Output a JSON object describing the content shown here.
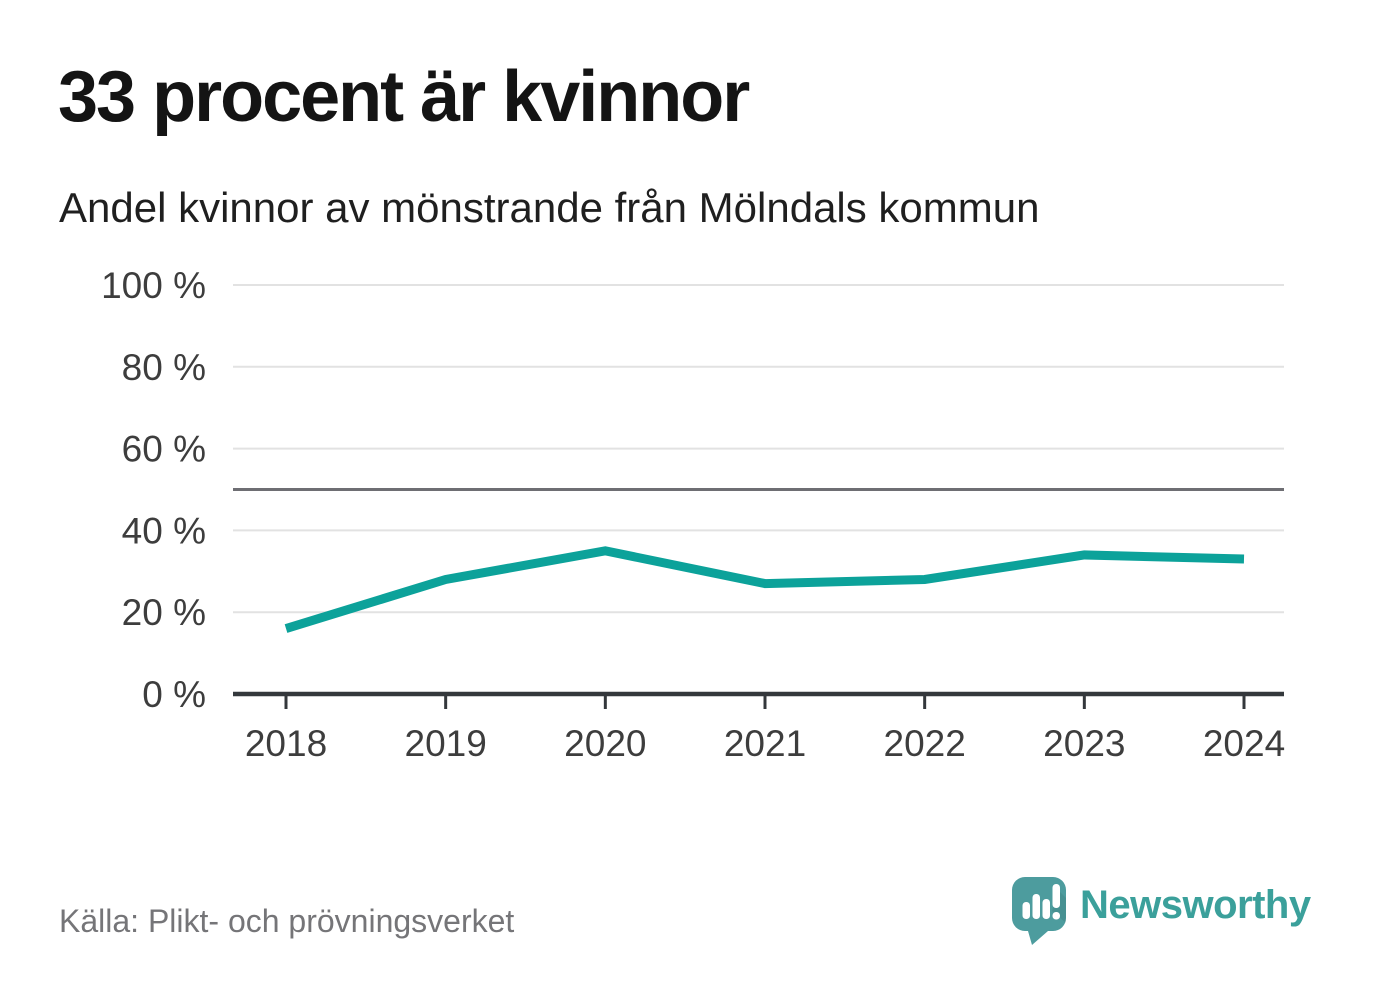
{
  "header": {
    "title": "33 procent är kvinnor",
    "subtitle": "Andel kvinnor av mönstrande från Mölndals kommun"
  },
  "chart_data": {
    "type": "line",
    "title": "33 procent är kvinnor",
    "subtitle": "Andel kvinnor av mönstrande från Mölndals kommun",
    "categories": [
      "2018",
      "2019",
      "2020",
      "2021",
      "2022",
      "2023",
      "2024"
    ],
    "series": [
      {
        "name": "Andel kvinnor av mönstrande",
        "values": [
          16,
          28,
          35,
          27,
          28,
          34,
          33
        ]
      }
    ],
    "unit": "%",
    "xlabel": "",
    "ylabel": "",
    "ylim": [
      0,
      100
    ],
    "yticks": [
      0,
      20,
      40,
      60,
      80,
      100
    ],
    "ytick_labels": [
      "0 %",
      "20 %",
      "40 %",
      "60 %",
      "80 %",
      "100 %"
    ],
    "reference_line_y": 50,
    "grid": true,
    "legend": false
  },
  "footer": {
    "source": "Källa: Plikt- och prövningsverket",
    "brand": "Newsworthy"
  },
  "icons": {
    "logo": "newsworthy-speech-bubble-barchart-icon"
  },
  "colors": {
    "line": "#0ca29a",
    "grid": "#e2e2e2",
    "reference": "#6e6e73",
    "axis": "#34383c",
    "tick_text": "#3d3d3d",
    "title_text": "#141414",
    "subtitle_text": "#1f1f1f",
    "source_text": "#757578",
    "brand_teal": "#3ba09b",
    "logo_fill": "#4d9c9e",
    "background": "#ffffff"
  }
}
